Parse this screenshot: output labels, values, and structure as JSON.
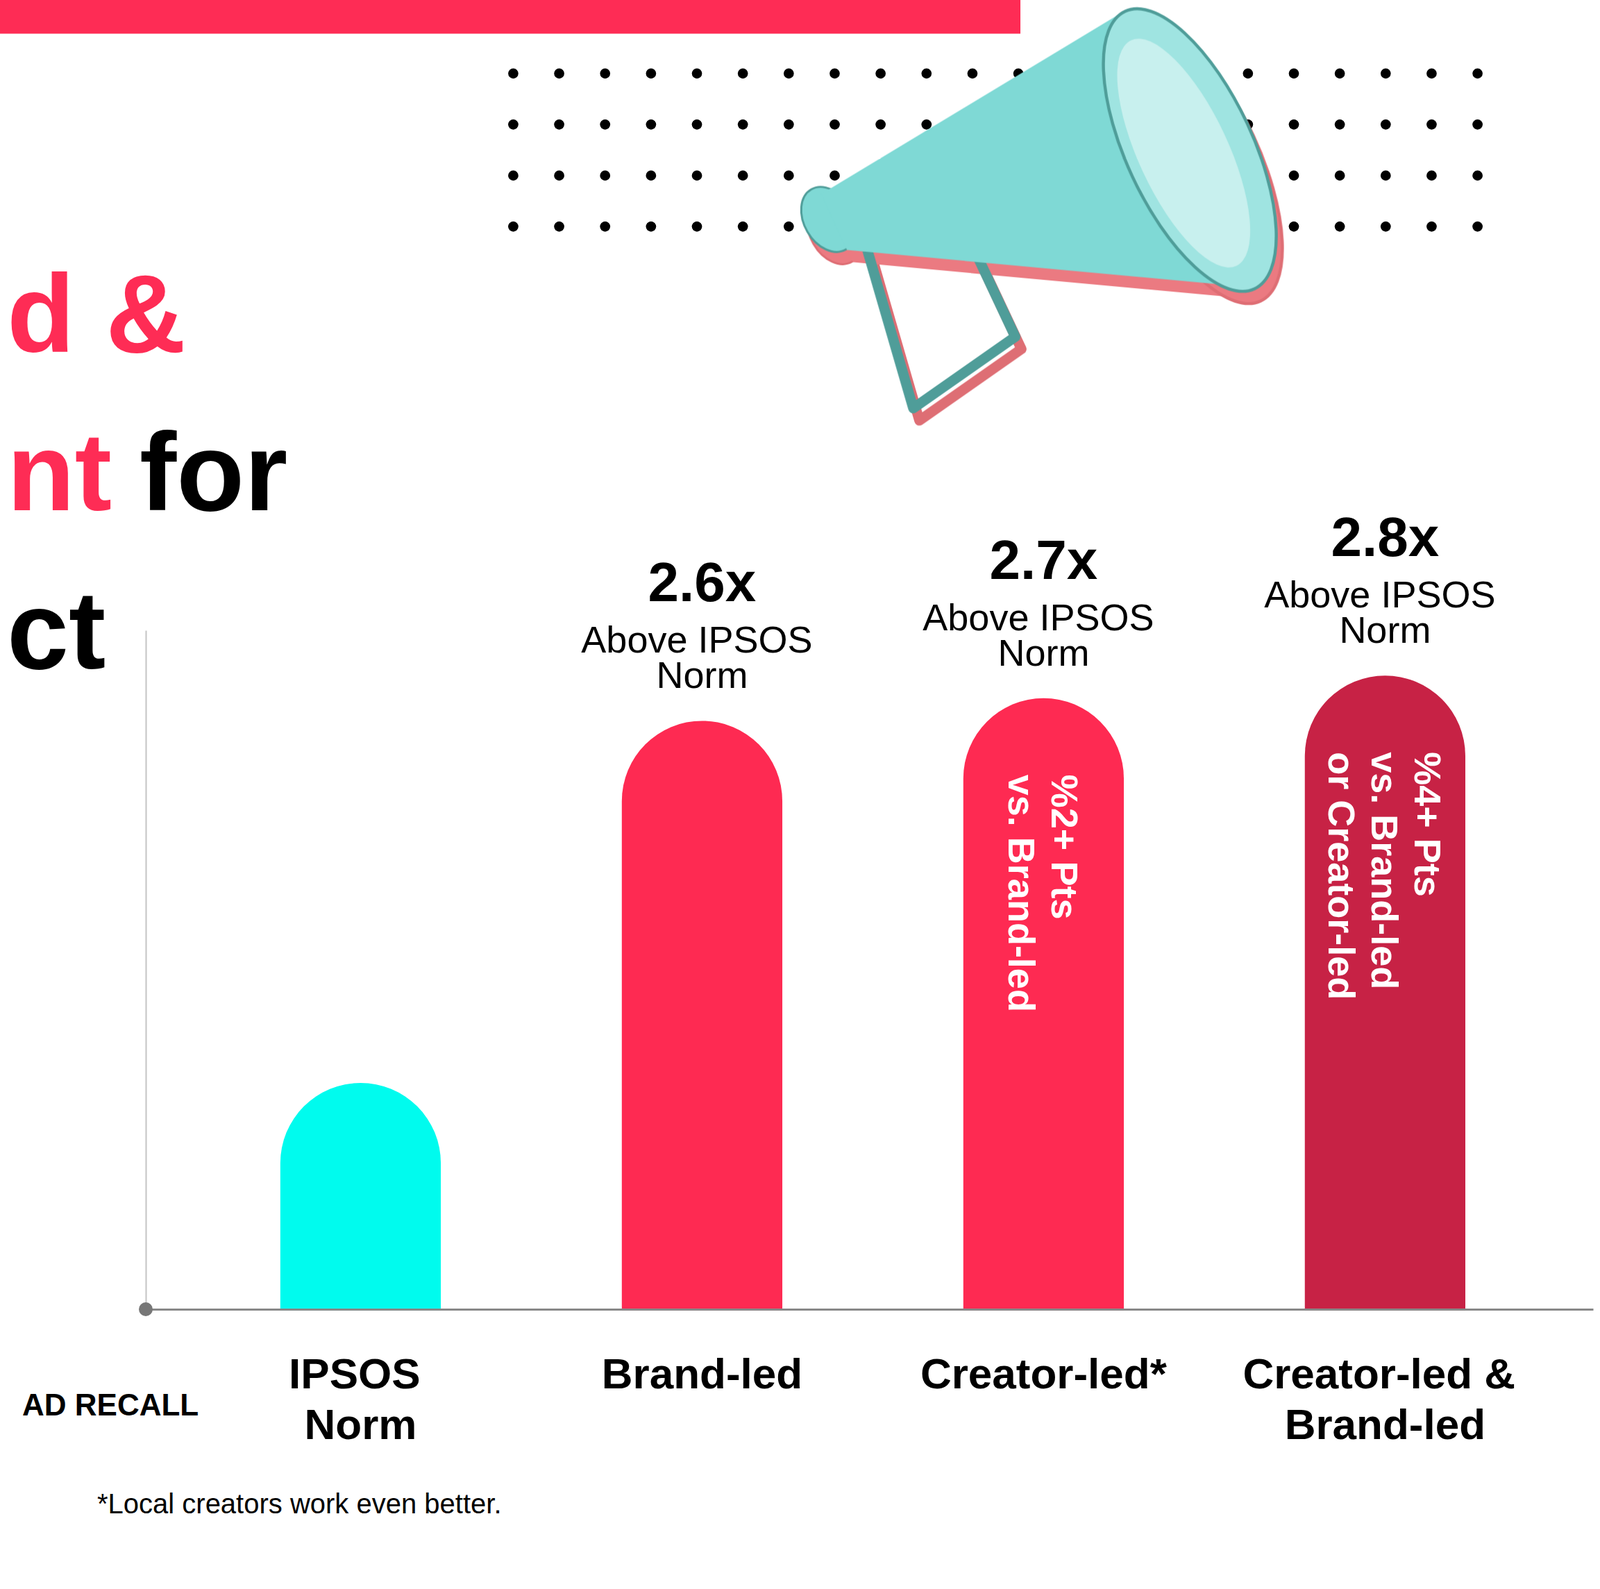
{
  "chart_data": {
    "type": "bar",
    "title": [
      [
        {
          "text": "d &",
          "color": "#fe2c55"
        }
      ],
      [
        {
          "text": "nt",
          "color": "#fe2c55"
        },
        {
          "text": "for",
          "color": "#000000"
        }
      ],
      [
        {
          "text": "ct",
          "color": "#000000"
        }
      ]
    ],
    "ylabel": "AD RECALL",
    "categories": [
      "IPSOS Norm",
      "Brand-led",
      "Creator-led*",
      "Creator-led & Brand-led"
    ],
    "values": [
      1,
      2.6,
      2.7,
      2.8
    ],
    "value_labels": [
      null,
      "2.6x",
      "2.7x",
      "2.8x"
    ],
    "colors": [
      "#00fbee",
      "#fe2a52",
      "#fe2a52",
      "#c72245"
    ],
    "data_labels": true,
    "annotations": [
      {
        "category": "Brand-led",
        "text": "Above IPSOS Norm"
      },
      {
        "category": "Creator-led*",
        "text": "Above IPSOS Norm"
      },
      {
        "category": "Creator-led & Brand-led",
        "text": "Above IPSOS Norm"
      }
    ],
    "bar_notes": [
      {
        "category": "Creator-led*",
        "text": [
          "%2+ Pts",
          "vs. Brand-led"
        ]
      },
      {
        "category": "Creator-led & Brand-led",
        "text": [
          "%4+ Pts",
          "vs. Brand-led",
          "or Creator-led"
        ]
      }
    ],
    "footnote": "*Local creators work even better.",
    "ylim": [
      0,
      3
    ],
    "tick_labels": "x"
  }
}
